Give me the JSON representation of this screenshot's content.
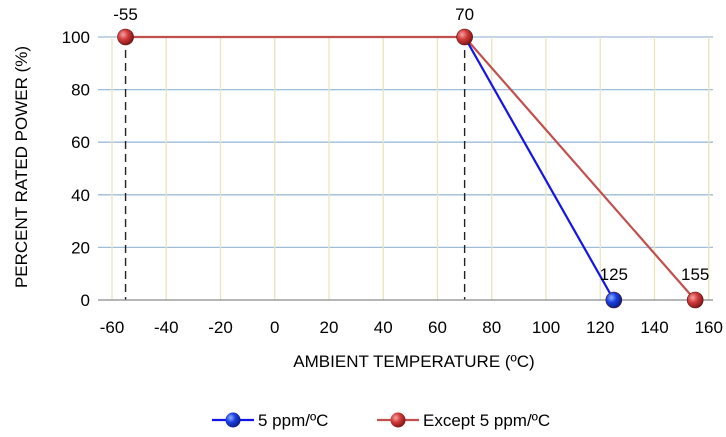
{
  "chart_data": {
    "type": "line",
    "title": "",
    "xlabel": "AMBIENT TEMPERATURE (ºC)",
    "ylabel": "PERCENT RATED POWER (%)",
    "xlim": [
      -60,
      170
    ],
    "ylim": [
      0,
      100
    ],
    "xticks": [
      -60,
      -40,
      -20,
      0,
      20,
      40,
      60,
      80,
      100,
      120,
      140,
      160
    ],
    "yticks": [
      0,
      20,
      40,
      60,
      80,
      100
    ],
    "grid": true,
    "legend_position": "bottom",
    "series": [
      {
        "name": "5 ppm/ºC",
        "color": "#1414e6",
        "marker": "#1a3fe0",
        "x": [
          70,
          125
        ],
        "y": [
          100,
          0
        ],
        "markers": [
          125
        ]
      },
      {
        "name": "Except 5 ppm/ºC",
        "color": "#c0504d",
        "marker": "#cc3333",
        "x": [
          -55,
          70,
          155
        ],
        "y": [
          100,
          100,
          0
        ],
        "markers": [
          -55,
          70,
          155
        ]
      }
    ],
    "annotations": [
      {
        "text": "-55",
        "x": -55,
        "y": 100
      },
      {
        "text": "70",
        "x": 70,
        "y": 100
      },
      {
        "text": "125",
        "x": 125,
        "y": 0
      },
      {
        "text": "155",
        "x": 155,
        "y": 0
      }
    ],
    "reference_lines": [
      {
        "x": -55,
        "from": 0,
        "to": 100
      },
      {
        "x": 70,
        "from": 0,
        "to": 100
      }
    ]
  }
}
